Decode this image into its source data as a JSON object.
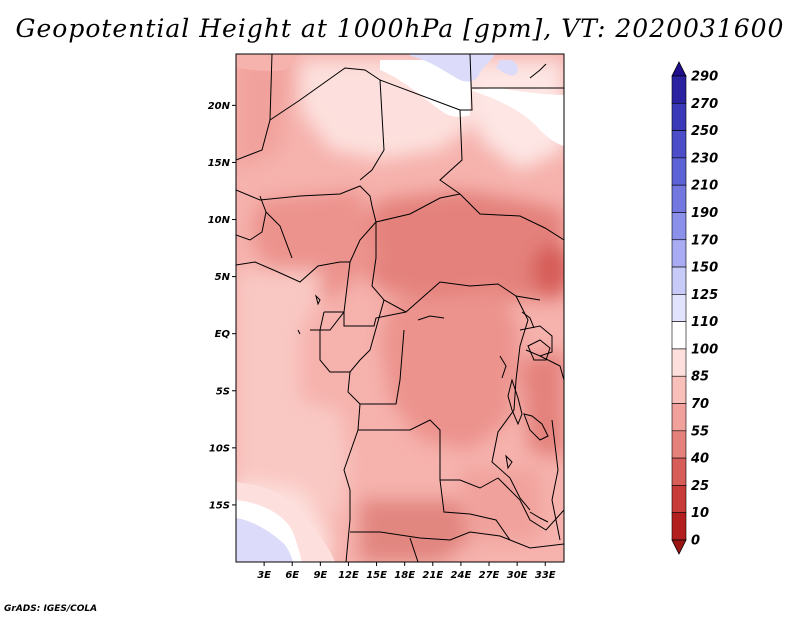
{
  "title": "Geopotential Height at 1000hPa [gpm], VT: 2020031600",
  "credit": "GrADS: IGES/COLA",
  "map": {
    "lat_labels": [
      "20N",
      "15N",
      "10N",
      "5N",
      "EQ",
      "5S",
      "10S",
      "15S"
    ],
    "lon_labels": [
      "3E",
      "6E",
      "9E",
      "12E",
      "15E",
      "18E",
      "21E",
      "24E",
      "27E",
      "30E",
      "33E"
    ],
    "lat_values": [
      20,
      15,
      10,
      5,
      0,
      -5,
      -10,
      -15
    ],
    "lon_values": [
      3,
      6,
      9,
      12,
      15,
      18,
      21,
      24,
      27,
      30,
      33
    ],
    "lat_range": [
      -20,
      24.5
    ],
    "lon_range": [
      0,
      35
    ]
  },
  "colorbar": {
    "labels": [
      "290",
      "270",
      "250",
      "230",
      "210",
      "190",
      "170",
      "150",
      "125",
      "110",
      "100",
      "85",
      "70",
      "55",
      "40",
      "25",
      "10",
      "0"
    ],
    "colors": [
      "#1f0f8c",
      "#2a22a0",
      "#3a3ab8",
      "#4b4dc9",
      "#5d62d6",
      "#7378e0",
      "#8b90ea",
      "#a9acf2",
      "#c8cbf8",
      "#e2e3fc",
      "#ffffff",
      "#fde0dd",
      "#f9c0bb",
      "#f1a19b",
      "#e4817b",
      "#d65d58",
      "#c73b38",
      "#b31f1f",
      "#9c1515"
    ]
  }
}
